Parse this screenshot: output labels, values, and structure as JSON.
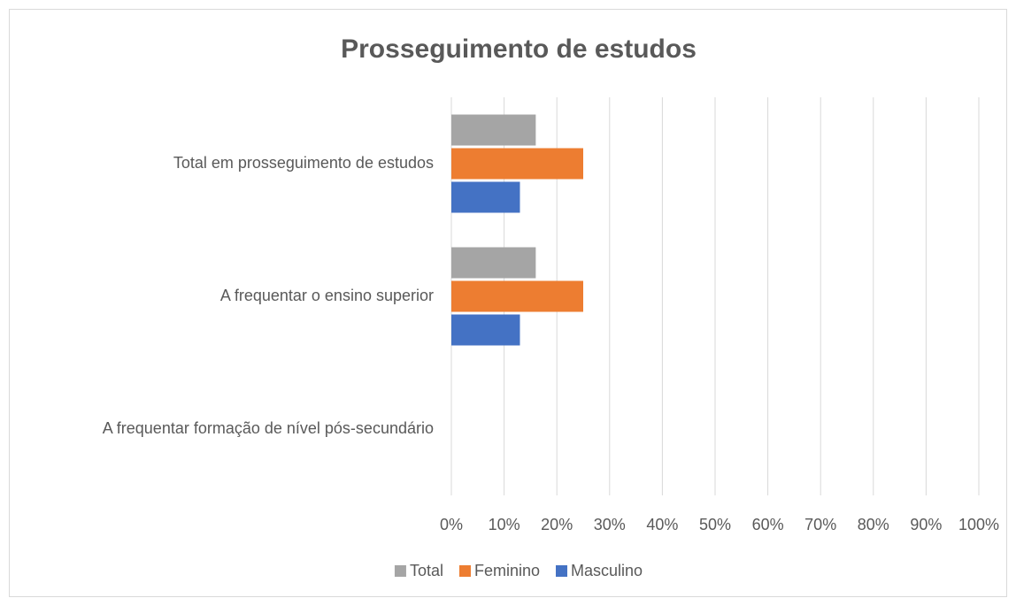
{
  "chart_data": {
    "type": "barh",
    "title": "Prosseguimento de estudos",
    "categories": [
      "Total em prosseguimento de estudos",
      "A frequentar o ensino superior",
      "A frequentar formação de nível pós-secundário"
    ],
    "series": [
      {
        "name": "Total",
        "color": "#a5a5a5",
        "values": [
          16,
          16,
          0
        ]
      },
      {
        "name": "Feminino",
        "color": "#ed7d31",
        "values": [
          25,
          25,
          0
        ]
      },
      {
        "name": "Masculino",
        "color": "#4472c4",
        "values": [
          13,
          13,
          0
        ]
      }
    ],
    "xlim": [
      0,
      100
    ],
    "xticks": [
      {
        "value": 0,
        "label": "0%"
      },
      {
        "value": 10,
        "label": "10%"
      },
      {
        "value": 20,
        "label": "20%"
      },
      {
        "value": 30,
        "label": "30%"
      },
      {
        "value": 40,
        "label": "40%"
      },
      {
        "value": 50,
        "label": "50%"
      },
      {
        "value": 60,
        "label": "60%"
      },
      {
        "value": 70,
        "label": "70%"
      },
      {
        "value": 80,
        "label": "80%"
      },
      {
        "value": 90,
        "label": "90%"
      },
      {
        "value": 100,
        "label": "100%"
      }
    ],
    "grid": true,
    "legend": "bottom"
  }
}
